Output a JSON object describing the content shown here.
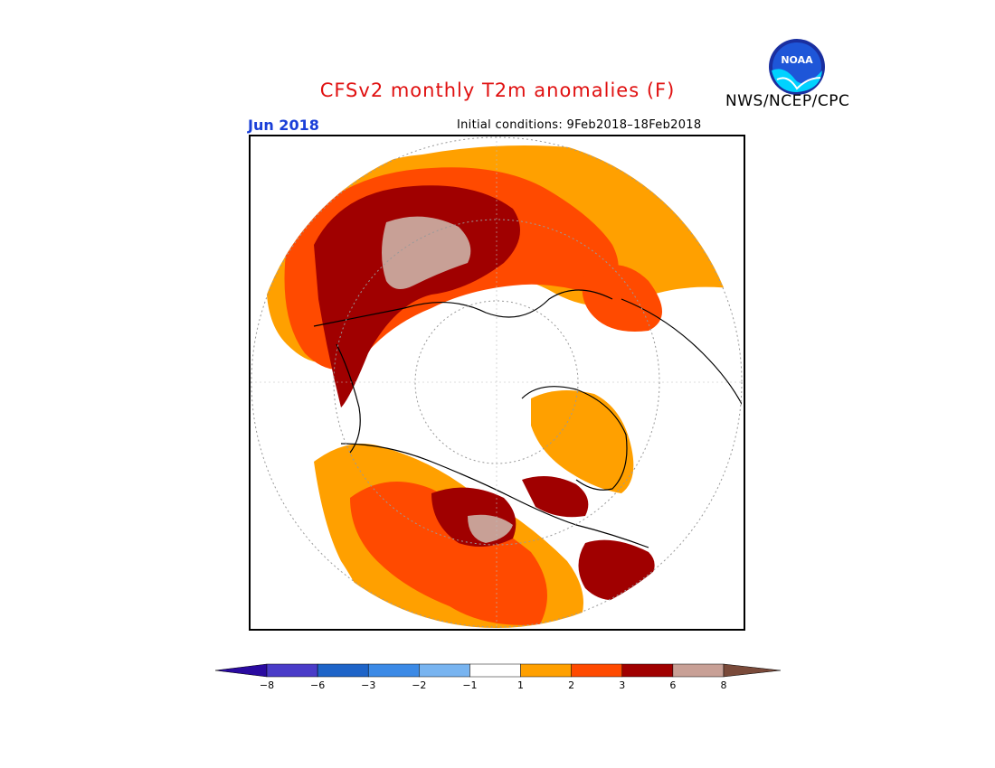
{
  "header": {
    "title": "CFSv2 monthly T2m anomalies (F)",
    "agency": "NWS/NCEP/CPC",
    "logo_text": "NOAA",
    "month": "Jun 2018",
    "initial_conditions": "Initial conditions: 9Feb2018–18Feb2018"
  },
  "colors": {
    "title": "#e01010",
    "month": "#1a3fd8",
    "bins": [
      "#2a0aa0",
      "#4a3cc8",
      "#1e64c8",
      "#3c8ae6",
      "#78b4f0",
      "#ffffff",
      "#ffa000",
      "#ff4a00",
      "#a00000",
      "#c8a096",
      "#7a4a3a"
    ]
  },
  "legend": {
    "ticks": [
      "−8",
      "−6",
      "−3",
      "−2",
      "−1",
      "1",
      "2",
      "3",
      "6",
      "8"
    ]
  }
}
